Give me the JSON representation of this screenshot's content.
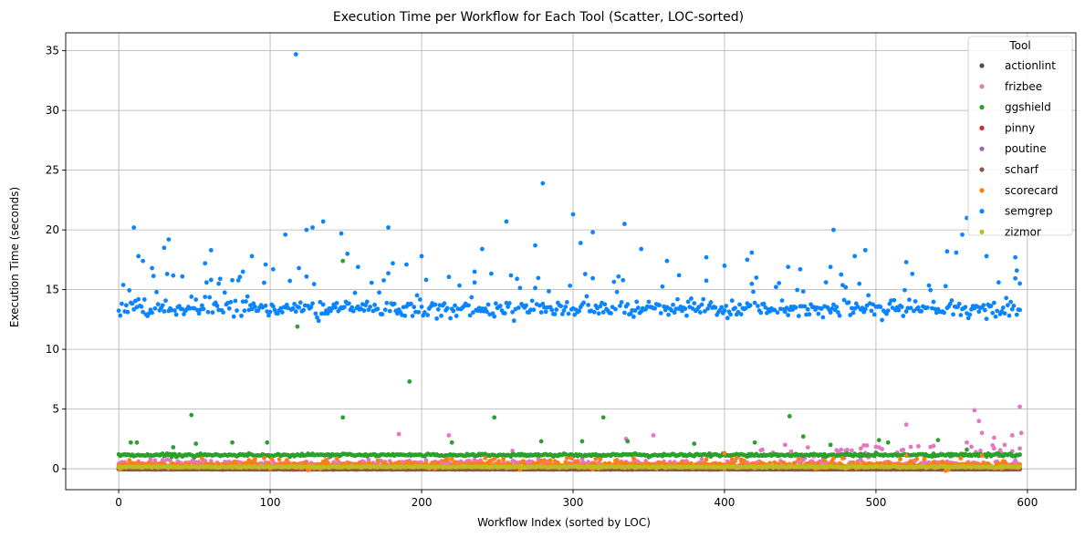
{
  "chart_data": {
    "type": "scatter",
    "title": "Execution Time per Workflow for Each Tool (Scatter, LOC-sorted)",
    "xlabel": "Workflow Index (sorted by LOC)",
    "ylabel": "Execution Time (seconds)",
    "xlim": [
      -35,
      632
    ],
    "ylim": [
      -1.75,
      36.5
    ],
    "xticks": [
      0,
      100,
      200,
      300,
      400,
      500,
      600
    ],
    "yticks": [
      0,
      5,
      10,
      15,
      20,
      25,
      30,
      35
    ],
    "grid": true,
    "legend": {
      "title": "Tool",
      "placement": "top-right"
    },
    "n_workflows": 596,
    "series": [
      {
        "name": "actionlint",
        "color": "#4d4d4d",
        "typical": 0.0,
        "spread": 0.02,
        "outliers": []
      },
      {
        "name": "frizbee",
        "color": "#e377c2",
        "typical": 0.4,
        "spread": 0.3,
        "outliers": [
          [
            185,
            2.9
          ],
          [
            218,
            2.8
          ],
          [
            260,
            1.5
          ],
          [
            335,
            2.5
          ],
          [
            353,
            2.8
          ],
          [
            440,
            2.0
          ],
          [
            490,
            1.7
          ],
          [
            520,
            3.7
          ],
          [
            560,
            2.2
          ],
          [
            565,
            4.9
          ],
          [
            568,
            4.0
          ],
          [
            570,
            3.0
          ],
          [
            578,
            2.6
          ],
          [
            585,
            2.0
          ],
          [
            590,
            2.8
          ],
          [
            595,
            5.2
          ],
          [
            596,
            3.0
          ]
        ]
      },
      {
        "name": "ggshield",
        "color": "#2ca02c",
        "typical": 1.15,
        "spread": 0.1,
        "outliers": [
          [
            8,
            2.2
          ],
          [
            12,
            2.2
          ],
          [
            36,
            1.8
          ],
          [
            48,
            4.5
          ],
          [
            51,
            2.1
          ],
          [
            75,
            2.2
          ],
          [
            98,
            2.2
          ],
          [
            118,
            11.9
          ],
          [
            148,
            4.3
          ],
          [
            148,
            17.4
          ],
          [
            192,
            7.3
          ],
          [
            220,
            2.2
          ],
          [
            248,
            4.3
          ],
          [
            279,
            2.3
          ],
          [
            306,
            2.3
          ],
          [
            320,
            4.3
          ],
          [
            336,
            2.3
          ],
          [
            380,
            2.1
          ],
          [
            420,
            2.2
          ],
          [
            443,
            4.4
          ],
          [
            452,
            2.7
          ],
          [
            470,
            2.0
          ],
          [
            502,
            2.4
          ],
          [
            508,
            2.2
          ],
          [
            541,
            2.4
          ],
          [
            560,
            1.6
          ]
        ]
      },
      {
        "name": "pinny",
        "color": "#d62728",
        "typical": 0.02,
        "spread": 0.02,
        "outliers": []
      },
      {
        "name": "poutine",
        "color": "#9467bd",
        "typical": 0.05,
        "spread": 0.03,
        "outliers": []
      },
      {
        "name": "scharf",
        "color": "#8c564b",
        "typical": -0.05,
        "spread": 0.02,
        "outliers": []
      },
      {
        "name": "scorecard",
        "color": "#ff7f0e",
        "typical": 0.3,
        "spread": 0.25,
        "outliers": [
          [
            400,
            1.3
          ],
          [
            520,
            1.1
          ],
          [
            570,
            1.1
          ]
        ]
      },
      {
        "name": "semgrep",
        "color": "#0a84ff",
        "typical": 13.4,
        "spread": 0.6,
        "outliers": [
          [
            10,
            20.2
          ],
          [
            13,
            17.8
          ],
          [
            16,
            17.4
          ],
          [
            22,
            16.8
          ],
          [
            30,
            18.5
          ],
          [
            33,
            19.2
          ],
          [
            42,
            16.1
          ],
          [
            57,
            17.2
          ],
          [
            61,
            18.3
          ],
          [
            66,
            15.5
          ],
          [
            82,
            16.5
          ],
          [
            88,
            17.8
          ],
          [
            97,
            17.1
          ],
          [
            102,
            16.7
          ],
          [
            110,
            19.6
          ],
          [
            117,
            34.7
          ],
          [
            119,
            16.8
          ],
          [
            124,
            20.0
          ],
          [
            128,
            20.2
          ],
          [
            135,
            20.7
          ],
          [
            147,
            19.7
          ],
          [
            151,
            18.0
          ],
          [
            158,
            16.9
          ],
          [
            178,
            20.2
          ],
          [
            181,
            17.2
          ],
          [
            190,
            17.1
          ],
          [
            200,
            17.8
          ],
          [
            235,
            16.5
          ],
          [
            240,
            18.4
          ],
          [
            256,
            20.7
          ],
          [
            275,
            18.7
          ],
          [
            280,
            23.9
          ],
          [
            300,
            21.3
          ],
          [
            305,
            18.9
          ],
          [
            313,
            19.8
          ],
          [
            334,
            20.5
          ],
          [
            345,
            18.4
          ],
          [
            362,
            17.4
          ],
          [
            370,
            16.2
          ],
          [
            388,
            17.7
          ],
          [
            400,
            17.0
          ],
          [
            415,
            17.5
          ],
          [
            418,
            18.1
          ],
          [
            442,
            16.9
          ],
          [
            450,
            16.7
          ],
          [
            470,
            16.9
          ],
          [
            472,
            20.0
          ],
          [
            486,
            17.8
          ],
          [
            493,
            18.3
          ],
          [
            520,
            17.3
          ],
          [
            547,
            18.2
          ],
          [
            553,
            18.1
          ],
          [
            557,
            19.6
          ],
          [
            560,
            21.0
          ],
          [
            573,
            17.8
          ],
          [
            592,
            17.7
          ],
          [
            593,
            16.6
          ],
          [
            595,
            13.3
          ]
        ]
      },
      {
        "name": "zizmor",
        "color": "#bcbd22",
        "typical": 0.15,
        "spread": 0.05,
        "outliers": []
      }
    ]
  }
}
